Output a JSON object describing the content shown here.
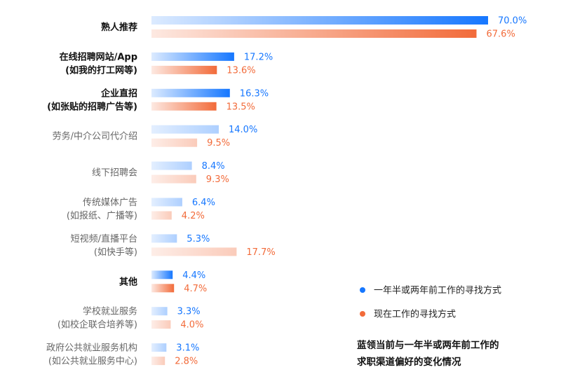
{
  "chart_data": {
    "type": "bar",
    "orientation": "horizontal",
    "categories": [
      [
        "熟人推荐"
      ],
      [
        "在线招聘网站/App",
        "(如我的打工网等)"
      ],
      [
        "企业直招",
        "(如张贴的招聘广告等)"
      ],
      [
        "劳务/中介公司代介绍"
      ],
      [
        "线下招聘会"
      ],
      [
        "传统媒体广告",
        "(如报纸、广播等)"
      ],
      [
        "短视频/直播平台",
        "(如快手等)"
      ],
      [
        "其他"
      ],
      [
        "学校就业服务",
        "(如校企联合培养等)"
      ],
      [
        "政府公共就业服务机构",
        "(如公共就业服务中心)"
      ]
    ],
    "emphasized_categories": [
      0,
      1,
      2,
      7
    ],
    "series": [
      {
        "name": "一年半或两年前工作的寻找方式",
        "color": "#1677ff",
        "values": [
          70.0,
          17.2,
          16.3,
          14.0,
          8.4,
          6.4,
          5.3,
          4.4,
          3.3,
          3.1
        ],
        "labels": [
          "70.0%",
          "17.2%",
          "16.3%",
          "14.0%",
          "8.4%",
          "6.4%",
          "5.3%",
          "4.4%",
          "3.3%",
          "3.1%"
        ]
      },
      {
        "name": "现在工作的寻找方式",
        "color": "#f26b3a",
        "values": [
          67.6,
          13.6,
          13.5,
          9.5,
          9.3,
          4.2,
          17.7,
          4.7,
          4.0,
          2.8
        ],
        "labels": [
          "67.6%",
          "13.6%",
          "13.5%",
          "9.5%",
          "9.3%",
          "4.2%",
          "17.7%",
          "4.7%",
          "4.0%",
          "2.8%"
        ]
      }
    ],
    "xlim": [
      0,
      70
    ],
    "grid": false,
    "legend_position": "right",
    "caption": [
      "蓝领当前与一年半或两年前工作的",
      "求职渠道偏好的变化情况"
    ]
  }
}
